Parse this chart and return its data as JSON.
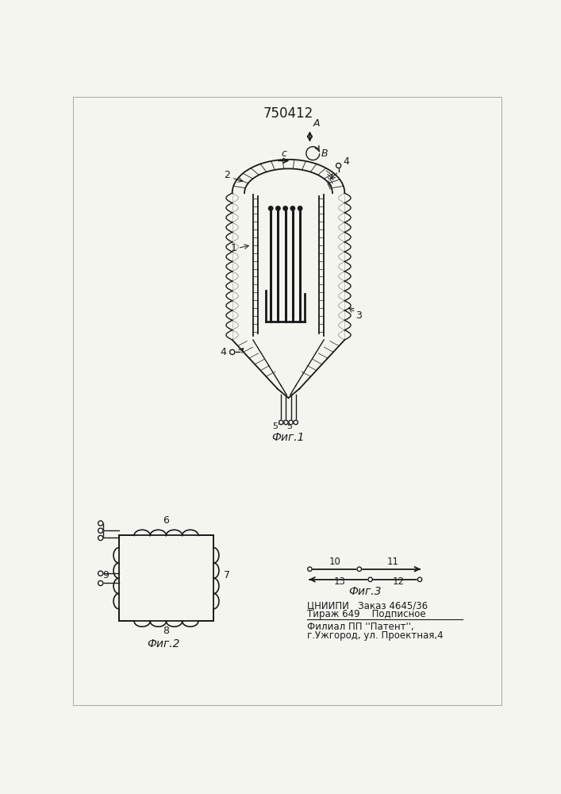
{
  "patent_number": "750412",
  "fig1_caption": "Фиг.1",
  "fig2_caption": "Фиг.2",
  "fig3_caption": "Фиг.3",
  "label_A": "A",
  "label_B": "B",
  "label_C": "c",
  "publisher_line1": "ЦНИИПИ   Заказ 4645/36",
  "publisher_line2": "Тираж 649    Подписное",
  "publisher_line3": "Филиал ПП ''Патент'',",
  "publisher_line4": "г.Ужгород, ул. Проектная,4",
  "bg_color": "#f5f5f0",
  "line_color": "#1a1a1a"
}
